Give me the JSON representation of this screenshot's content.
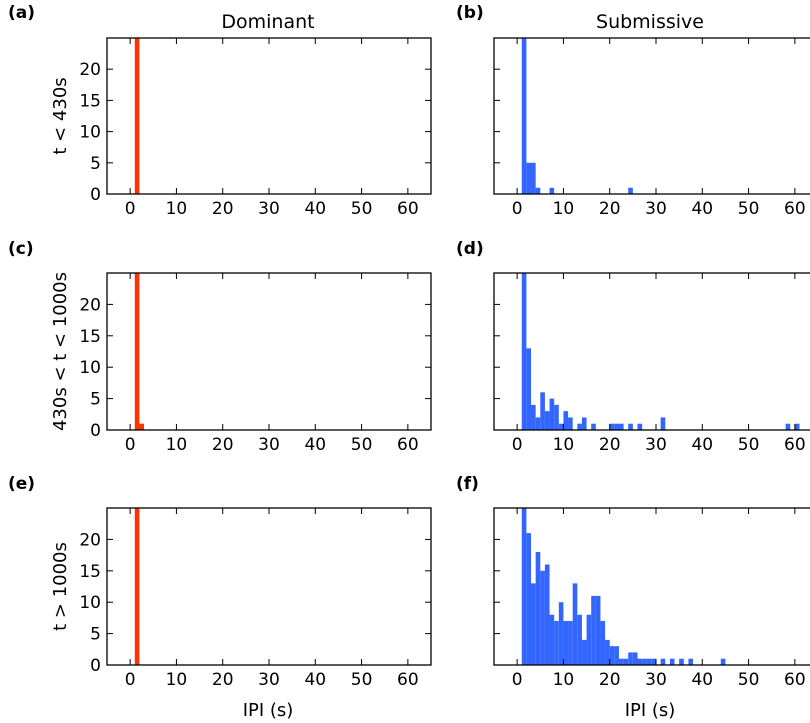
{
  "figure": {
    "column_titles": [
      "Dominant",
      "Submissive"
    ],
    "row_labels": [
      "t < 430s",
      "430s < t < 1000s",
      "t > 1000s"
    ],
    "xlabel": "IPI (s)"
  },
  "colors": {
    "dominant": "#ff3300",
    "submissive": "#3366ff"
  },
  "chart_data": [
    {
      "panel": "(a)",
      "type": "bar",
      "column": "Dominant",
      "ylabel": "t < 430s",
      "xlim": [
        -5,
        65
      ],
      "ylim": [
        0,
        25
      ],
      "xticks": [
        0,
        10,
        20,
        30,
        40,
        50,
        60
      ],
      "yticks": [
        0,
        5,
        10,
        15,
        20
      ],
      "bin_width": 1,
      "color": "#ff3300",
      "bins": [
        {
          "x": 1,
          "count": 25
        }
      ]
    },
    {
      "panel": "(b)",
      "type": "bar",
      "column": "Submissive",
      "ylabel": "",
      "xlim": [
        -5,
        65
      ],
      "ylim": [
        0,
        25
      ],
      "xticks": [
        0,
        10,
        20,
        30,
        40,
        50,
        60
      ],
      "yticks": [
        0,
        5,
        10,
        15,
        20
      ],
      "bin_width": 1,
      "color": "#3366ff",
      "bins": [
        {
          "x": 1,
          "count": 25
        },
        {
          "x": 2,
          "count": 5
        },
        {
          "x": 3,
          "count": 5
        },
        {
          "x": 4,
          "count": 1
        },
        {
          "x": 7,
          "count": 1
        },
        {
          "x": 24,
          "count": 1
        }
      ]
    },
    {
      "panel": "(c)",
      "type": "bar",
      "column": "Dominant",
      "ylabel": "430s < t < 1000s",
      "xlim": [
        -5,
        65
      ],
      "ylim": [
        0,
        25
      ],
      "xticks": [
        0,
        10,
        20,
        30,
        40,
        50,
        60
      ],
      "yticks": [
        0,
        5,
        10,
        15,
        20
      ],
      "bin_width": 1,
      "color": "#ff3300",
      "bins": [
        {
          "x": 1,
          "count": 25
        },
        {
          "x": 2,
          "count": 1
        }
      ]
    },
    {
      "panel": "(d)",
      "type": "bar",
      "column": "Submissive",
      "ylabel": "",
      "xlim": [
        -5,
        65
      ],
      "ylim": [
        0,
        25
      ],
      "xticks": [
        0,
        10,
        20,
        30,
        40,
        50,
        60
      ],
      "yticks": [
        0,
        5,
        10,
        15,
        20
      ],
      "bin_width": 1,
      "color": "#3366ff",
      "bins": [
        {
          "x": 1,
          "count": 25
        },
        {
          "x": 2,
          "count": 13
        },
        {
          "x": 3,
          "count": 4
        },
        {
          "x": 4,
          "count": 2
        },
        {
          "x": 5,
          "count": 6
        },
        {
          "x": 6,
          "count": 3
        },
        {
          "x": 7,
          "count": 5
        },
        {
          "x": 8,
          "count": 4
        },
        {
          "x": 9,
          "count": 1
        },
        {
          "x": 10,
          "count": 3
        },
        {
          "x": 11,
          "count": 2
        },
        {
          "x": 13,
          "count": 1
        },
        {
          "x": 14,
          "count": 2
        },
        {
          "x": 16,
          "count": 1
        },
        {
          "x": 20,
          "count": 1
        },
        {
          "x": 21,
          "count": 1
        },
        {
          "x": 22,
          "count": 1
        },
        {
          "x": 24,
          "count": 1
        },
        {
          "x": 26,
          "count": 1
        },
        {
          "x": 31,
          "count": 2
        },
        {
          "x": 58,
          "count": 1
        },
        {
          "x": 60,
          "count": 1
        }
      ]
    },
    {
      "panel": "(e)",
      "type": "bar",
      "column": "Dominant",
      "ylabel": "t > 1000s",
      "xlim": [
        -5,
        65
      ],
      "ylim": [
        0,
        25
      ],
      "xticks": [
        0,
        10,
        20,
        30,
        40,
        50,
        60
      ],
      "yticks": [
        0,
        5,
        10,
        15,
        20
      ],
      "bin_width": 1,
      "color": "#ff3300",
      "bins": [
        {
          "x": 1,
          "count": 25
        }
      ]
    },
    {
      "panel": "(f)",
      "type": "bar",
      "column": "Submissive",
      "ylabel": "",
      "xlim": [
        -5,
        65
      ],
      "ylim": [
        0,
        25
      ],
      "xticks": [
        0,
        10,
        20,
        30,
        40,
        50,
        60
      ],
      "yticks": [
        0,
        5,
        10,
        15,
        20
      ],
      "bin_width": 1,
      "color": "#3366ff",
      "bins": [
        {
          "x": 1,
          "count": 25
        },
        {
          "x": 2,
          "count": 21
        },
        {
          "x": 3,
          "count": 13
        },
        {
          "x": 4,
          "count": 18
        },
        {
          "x": 5,
          "count": 15
        },
        {
          "x": 6,
          "count": 16
        },
        {
          "x": 7,
          "count": 8
        },
        {
          "x": 8,
          "count": 7
        },
        {
          "x": 9,
          "count": 10
        },
        {
          "x": 10,
          "count": 7
        },
        {
          "x": 11,
          "count": 7
        },
        {
          "x": 12,
          "count": 13
        },
        {
          "x": 13,
          "count": 8
        },
        {
          "x": 14,
          "count": 4
        },
        {
          "x": 15,
          "count": 8
        },
        {
          "x": 16,
          "count": 11
        },
        {
          "x": 17,
          "count": 11
        },
        {
          "x": 18,
          "count": 7
        },
        {
          "x": 19,
          "count": 4
        },
        {
          "x": 20,
          "count": 3
        },
        {
          "x": 21,
          "count": 3
        },
        {
          "x": 22,
          "count": 1
        },
        {
          "x": 23,
          "count": 1
        },
        {
          "x": 24,
          "count": 2
        },
        {
          "x": 25,
          "count": 2
        },
        {
          "x": 26,
          "count": 1
        },
        {
          "x": 27,
          "count": 1
        },
        {
          "x": 28,
          "count": 1
        },
        {
          "x": 29,
          "count": 1
        },
        {
          "x": 31,
          "count": 1
        },
        {
          "x": 33,
          "count": 1
        },
        {
          "x": 35,
          "count": 1
        },
        {
          "x": 37,
          "count": 1
        },
        {
          "x": 44,
          "count": 1
        }
      ]
    }
  ]
}
